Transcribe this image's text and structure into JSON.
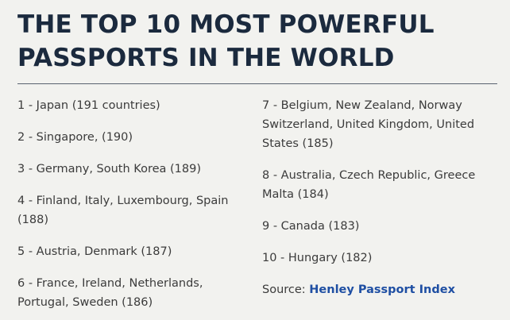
{
  "title": {
    "line1": "THE TOP 10 MOST POWERFUL",
    "line2": "PASSPORTS IN THE WORLD"
  },
  "left_column": [
    "1 - Japan (191 countries)",
    "2 - Singapore, (190)",
    "3 - Germany, South Korea (189)",
    "4 - Finland, Italy, Luxembourg, Spain (188)",
    "5 - Austria, Denmark (187)",
    "6 - France, Ireland, Netherlands, Portugal, Sweden (186)"
  ],
  "right_column": [
    "7 - Belgium, New Zealand, Norway Switzerland, United Kingdom, United States (185)",
    "8 - Australia, Czech Republic, Greece Malta (184)",
    "9 - Canada (183)",
    "10 - Hungary (182)"
  ],
  "source": {
    "label": "Source:",
    "link": "Henley Passport Index"
  },
  "colors": {
    "title": "#1b2a3e",
    "body_text": "#3b3b3b",
    "link": "#1f4fa3",
    "background": "#f2f2ef"
  }
}
